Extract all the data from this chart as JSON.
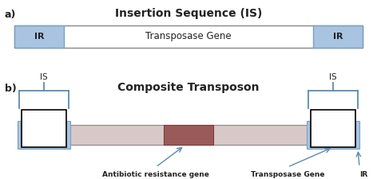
{
  "title_a": "Insertion Sequence (IS)",
  "title_b": "Composite Transposon",
  "label_a": "a)",
  "label_b": "b)",
  "ir_label": "IR",
  "transposase_label": "Transposase Gene",
  "antibiotic_label": "Antibiotic resistance gene",
  "transposase_label_b": "Transposase Gene",
  "ir_label_b": "IR",
  "is_label": "IS",
  "bg_color": "#ffffff",
  "ir_fill": "#a8c4e0",
  "ir_edge": "#7aa0c0",
  "transposase_fill": "#ffffff",
  "transposase_edge": "#888888",
  "main_bar_fill": "#d9c8c8",
  "main_bar_edge": "#888888",
  "antibiotic_fill": "#9b5a5a",
  "antibiotic_edge": "#7a3a3a",
  "white_box_fill": "#ffffff",
  "white_box_edge": "#000000",
  "bracket_color": "#5a8ab0",
  "arrow_color": "#5a8ab0",
  "font_color": "#222222"
}
